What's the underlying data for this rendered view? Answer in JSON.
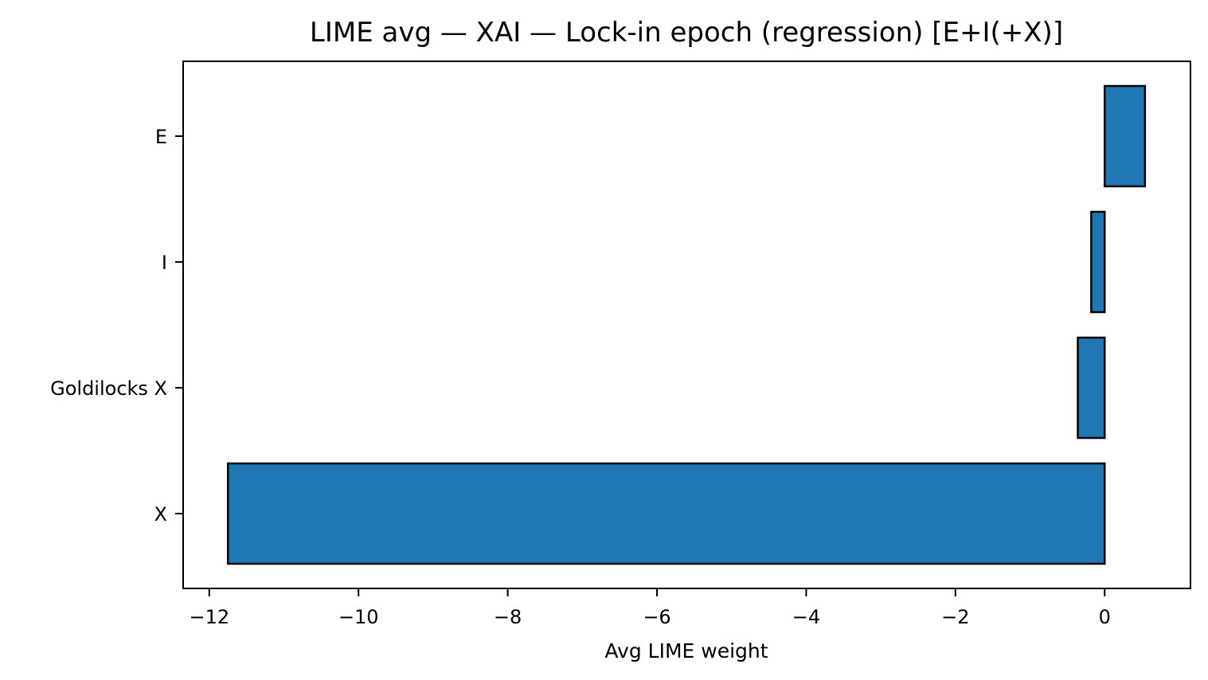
{
  "chart_data": {
    "type": "bar",
    "orientation": "horizontal",
    "title": "LIME avg — XAI — Lock-in epoch (regression) [E+I(+X)]",
    "xlabel": "Avg LIME weight",
    "ylabel": "",
    "categories": [
      "E",
      "I",
      "Goldilocks X",
      "X"
    ],
    "values": [
      0.54,
      -0.18,
      -0.36,
      -11.75
    ],
    "xlim": [
      -12.35,
      1.15
    ],
    "xticks": [
      -12,
      -10,
      -8,
      -6,
      -4,
      -2,
      0
    ],
    "xtick_labels": [
      "−12",
      "−10",
      "−8",
      "−6",
      "−4",
      "−2",
      "0"
    ],
    "grid": false,
    "bar_color": "#1f77b4",
    "edge_color": "#000000"
  }
}
